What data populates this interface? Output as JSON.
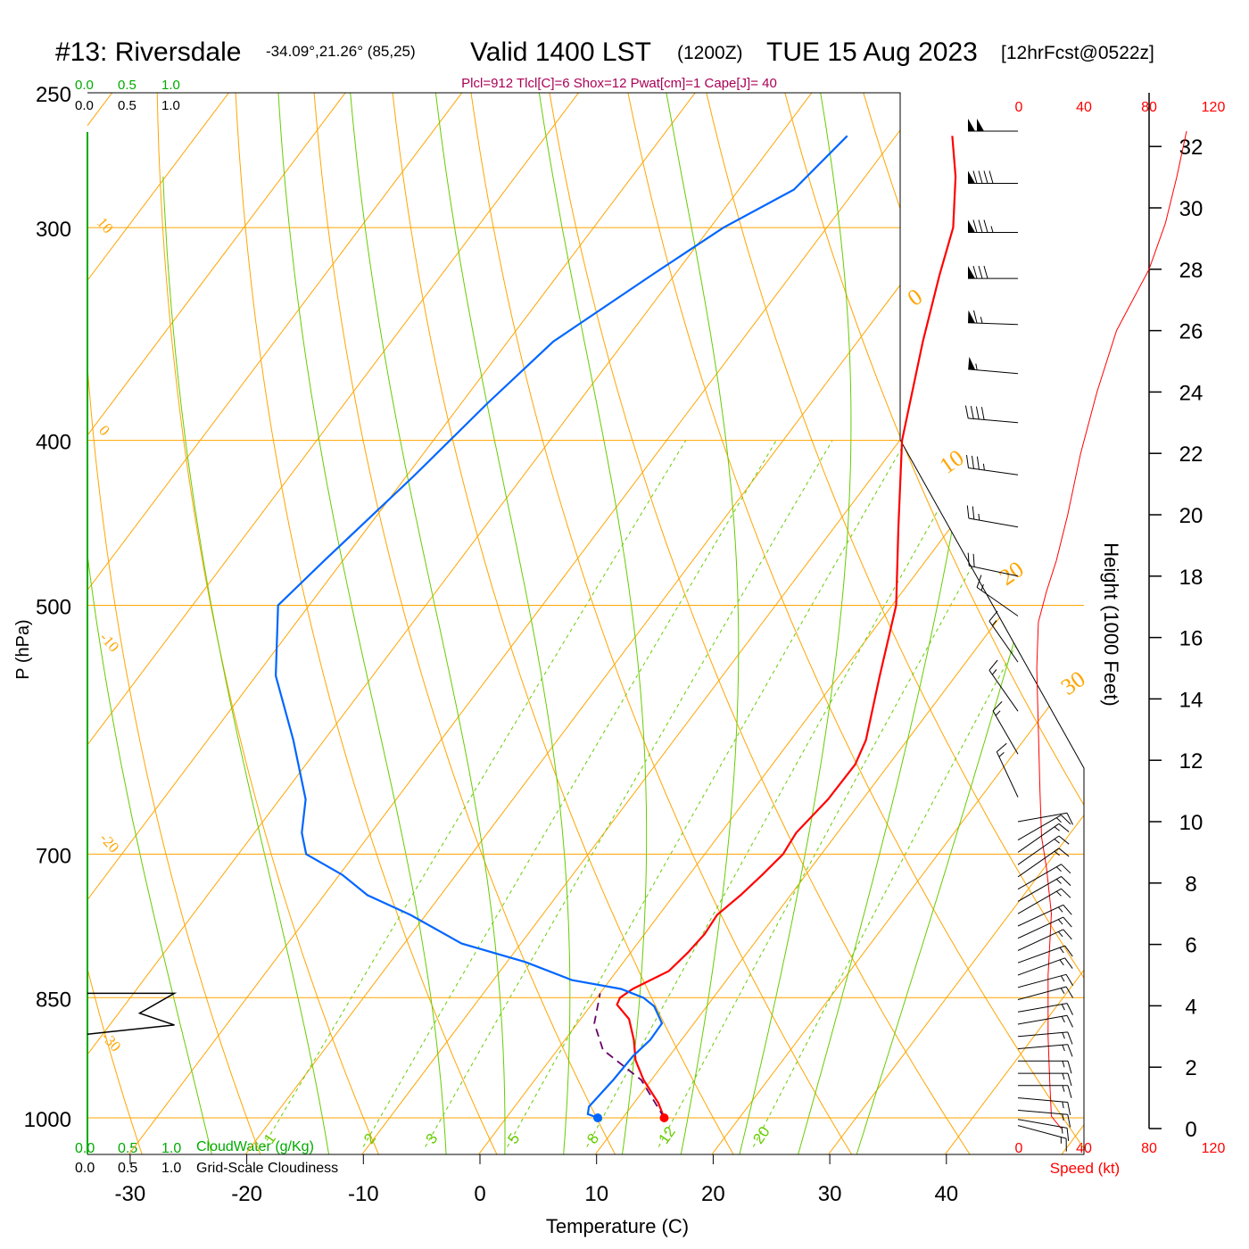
{
  "header": {
    "station": "#13: Riversdale",
    "coords": "-34.09°,21.26° (85,25)",
    "valid": "Valid 1400 LST",
    "zulu": "(1200Z)",
    "date": "TUE 15 Aug 2023",
    "forecast": "[12hrFcst@0522z]",
    "params": "Plcl=912 Tlcl[C]=6 Shox=12 Pwat[cm]=1 Cape[J]= 40"
  },
  "colors": {
    "temperature": "#ff0000",
    "dewpoint": "#0066ff",
    "isotherm": "#ffa500",
    "mixing_ratio": "#66cc00",
    "cloud_water": "#00aa00",
    "params": "#aa0055",
    "speed": "#ff0000"
  },
  "cloud_scale": {
    "top_green": [
      "0.0",
      "0.5",
      "1.0"
    ],
    "top_black": [
      "0.0",
      "0.5",
      "1.0"
    ],
    "bottom_green": [
      "0.0",
      "0.5",
      "1.0"
    ],
    "bottom_black": [
      "0.0",
      "0.5",
      "1.0"
    ],
    "cloudwater_label": "CloudWater (g/Kg)",
    "cloudiness_label": "Grid-Scale Cloudiness"
  },
  "speed_axis": {
    "ticks": [
      "0",
      "40",
      "80",
      "120"
    ],
    "label": "Speed (kt)"
  },
  "height_axis": {
    "label": "Height (1000 Feet)",
    "ticks": [
      "0",
      "2",
      "4",
      "6",
      "8",
      "10",
      "12",
      "14",
      "16",
      "18",
      "20",
      "22",
      "24",
      "26",
      "28",
      "30",
      "32"
    ]
  },
  "chart_data": {
    "type": "line",
    "xlabel": "Temperature (C)",
    "ylabel": "P (hPa)",
    "x_ticks": [
      "-30",
      "-20",
      "-10",
      "0",
      "10",
      "20",
      "30",
      "40"
    ],
    "pressure_levels": [
      "250",
      "300",
      "400",
      "500",
      "700",
      "850",
      "1000"
    ],
    "xlim": [
      -34,
      36
    ],
    "ylim": [
      1000,
      250
    ],
    "y_scale": "log",
    "isotherm_labels": [
      "10",
      "0",
      "-10",
      "-20",
      "-30",
      "0",
      "10",
      "20",
      "30"
    ],
    "mixing_ratio_labels": [
      "1",
      "2",
      "3",
      "5",
      "8",
      "12",
      "20"
    ],
    "series": [
      {
        "values": [
          [
            1000,
            15.8
          ],
          [
            980,
            14.3
          ],
          [
            950,
            11.5
          ],
          [
            925,
            9.5
          ],
          [
            900,
            8.0
          ],
          [
            875,
            6.2
          ],
          [
            858,
            4.2
          ],
          [
            850,
            4.0
          ],
          [
            840,
            4.5
          ],
          [
            820,
            6.4
          ],
          [
            800,
            6.8
          ],
          [
            780,
            7.0
          ],
          [
            760,
            6.8
          ],
          [
            740,
            7.5
          ],
          [
            720,
            8.0
          ],
          [
            700,
            8.4
          ],
          [
            680,
            8.1
          ],
          [
            650,
            8.6
          ],
          [
            620,
            8.6
          ],
          [
            600,
            7.9
          ],
          [
            550,
            4.8
          ],
          [
            500,
            1.5
          ],
          [
            450,
            -3.5
          ],
          [
            400,
            -9.0
          ],
          [
            350,
            -13.8
          ],
          [
            320,
            -16.8
          ],
          [
            300,
            -18.8
          ],
          [
            280,
            -22.0
          ],
          [
            265,
            -25.0
          ]
        ]
      },
      {
        "values": [
          [
            1000,
            10.1
          ],
          [
            995,
            9.0
          ],
          [
            985,
            8.6
          ],
          [
            950,
            8.9
          ],
          [
            920,
            9.0
          ],
          [
            900,
            9.4
          ],
          [
            880,
            9.3
          ],
          [
            860,
            7.5
          ],
          [
            850,
            6.0
          ],
          [
            840,
            3.5
          ],
          [
            830,
            -1.3
          ],
          [
            810,
            -6.5
          ],
          [
            790,
            -13.2
          ],
          [
            760,
            -19.5
          ],
          [
            740,
            -24.5
          ],
          [
            720,
            -28.0
          ],
          [
            700,
            -32.5
          ],
          [
            680,
            -34.3
          ],
          [
            650,
            -36.2
          ],
          [
            600,
            -41.2
          ],
          [
            550,
            -47.0
          ],
          [
            500,
            -51.5
          ],
          [
            470,
            -50.5
          ],
          [
            420,
            -48.5
          ],
          [
            380,
            -47.0
          ],
          [
            350,
            -45.5
          ],
          [
            320,
            -41.5
          ],
          [
            300,
            -38.5
          ],
          [
            285,
            -35.0
          ],
          [
            265,
            -34.0
          ]
        ]
      },
      {
        "values": [
          [
            1000,
            15.8
          ],
          [
            950,
            11.3
          ],
          [
            912,
            6.0
          ],
          [
            880,
            3.5
          ],
          [
            845,
            2.0
          ]
        ]
      }
    ],
    "cloudiness": [
      [
        845,
        0.75
      ],
      [
        868,
        0.45
      ],
      [
        882,
        0.75
      ],
      [
        893,
        0.0
      ]
    ],
    "wind_speed_profile": [
      [
        0,
        26
      ],
      [
        0.4,
        20
      ],
      [
        1.5,
        19
      ],
      [
        3,
        18
      ],
      [
        5,
        18
      ],
      [
        7,
        20
      ],
      [
        8.5,
        17
      ],
      [
        9.5,
        14
      ],
      [
        11,
        13
      ],
      [
        13,
        12
      ],
      [
        15,
        11
      ],
      [
        16.5,
        12
      ],
      [
        17.5,
        17
      ],
      [
        18.5,
        23
      ],
      [
        20,
        30
      ],
      [
        22,
        38
      ],
      [
        24,
        48
      ],
      [
        26,
        60
      ],
      [
        28,
        80
      ],
      [
        29.5,
        90
      ],
      [
        31,
        97
      ],
      [
        32.5,
        103
      ]
    ],
    "wind_barbs": [
      {
        "h": 32.5,
        "dir": 270,
        "spd": 100
      },
      {
        "h": 30.8,
        "dir": 270,
        "spd": 90
      },
      {
        "h": 29.2,
        "dir": 270,
        "spd": 85
      },
      {
        "h": 27.7,
        "dir": 270,
        "spd": 80
      },
      {
        "h": 26.2,
        "dir": 272,
        "spd": 65
      },
      {
        "h": 24.6,
        "dir": 275,
        "spd": 55
      },
      {
        "h": 23.0,
        "dir": 275,
        "spd": 40
      },
      {
        "h": 21.3,
        "dir": 278,
        "spd": 35
      },
      {
        "h": 19.6,
        "dir": 280,
        "spd": 25
      },
      {
        "h": 18.0,
        "dir": 282,
        "spd": 20
      },
      {
        "h": 16.7,
        "dir": 305,
        "spd": 15
      },
      {
        "h": 15.2,
        "dir": 325,
        "spd": 15
      },
      {
        "h": 13.6,
        "dir": 325,
        "spd": 15
      },
      {
        "h": 12.2,
        "dir": 330,
        "spd": 15
      },
      {
        "h": 10.8,
        "dir": 335,
        "spd": 15
      },
      {
        "h": 10.0,
        "dir": 80,
        "spd": 10
      },
      {
        "h": 9.4,
        "dir": 60,
        "spd": 15
      },
      {
        "h": 9.0,
        "dir": 55,
        "spd": 15
      },
      {
        "h": 8.6,
        "dir": 55,
        "spd": 15
      },
      {
        "h": 8.2,
        "dir": 55,
        "spd": 15
      },
      {
        "h": 7.8,
        "dir": 60,
        "spd": 15
      },
      {
        "h": 7.4,
        "dir": 60,
        "spd": 15
      },
      {
        "h": 7.0,
        "dir": 60,
        "spd": 15
      },
      {
        "h": 6.6,
        "dir": 65,
        "spd": 15
      },
      {
        "h": 6.2,
        "dir": 65,
        "spd": 15
      },
      {
        "h": 5.8,
        "dir": 65,
        "spd": 15
      },
      {
        "h": 5.4,
        "dir": 70,
        "spd": 15
      },
      {
        "h": 5.0,
        "dir": 70,
        "spd": 15
      },
      {
        "h": 4.6,
        "dir": 75,
        "spd": 15
      },
      {
        "h": 4.2,
        "dir": 75,
        "spd": 15
      },
      {
        "h": 3.8,
        "dir": 80,
        "spd": 15
      },
      {
        "h": 3.4,
        "dir": 80,
        "spd": 15
      },
      {
        "h": 3.0,
        "dir": 85,
        "spd": 15
      },
      {
        "h": 2.6,
        "dir": 85,
        "spd": 15
      },
      {
        "h": 2.2,
        "dir": 90,
        "spd": 15
      },
      {
        "h": 1.8,
        "dir": 90,
        "spd": 15
      },
      {
        "h": 1.4,
        "dir": 90,
        "spd": 15
      },
      {
        "h": 1.0,
        "dir": 95,
        "spd": 15
      },
      {
        "h": 0.6,
        "dir": 95,
        "spd": 15
      },
      {
        "h": 0.3,
        "dir": 100,
        "spd": 15
      },
      {
        "h": 0.1,
        "dir": 105,
        "spd": 15
      }
    ]
  }
}
